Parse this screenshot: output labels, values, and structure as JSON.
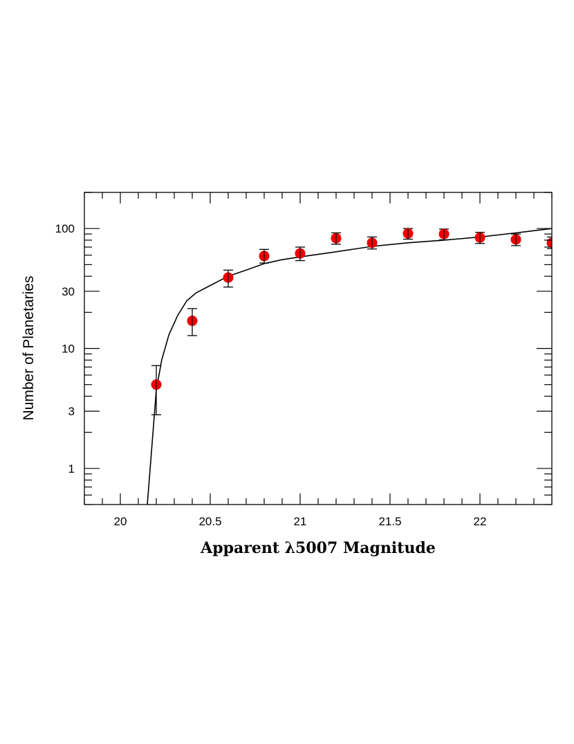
{
  "chart_data": {
    "type": "scatter",
    "xlabel": "Apparent λ5007 Magnitude",
    "ylabel": "Number of Planetaries",
    "xlim": [
      19.8,
      22.4
    ],
    "ylim": [
      0.5,
      200
    ],
    "yscale": "log",
    "grid": false,
    "point_color": "#ee0000",
    "x_ticks": [
      {
        "value": 20,
        "label": "20"
      },
      {
        "value": 20.5,
        "label": "20.5"
      },
      {
        "value": 21,
        "label": "21"
      },
      {
        "value": 21.5,
        "label": "21.5"
      },
      {
        "value": 22,
        "label": "22"
      }
    ],
    "y_ticks": [
      {
        "value": 1,
        "label": "1"
      },
      {
        "value": 3,
        "label": "3"
      },
      {
        "value": 10,
        "label": "10"
      },
      {
        "value": 30,
        "label": "30"
      },
      {
        "value": 100,
        "label": "100"
      }
    ],
    "points": [
      {
        "x": 20.2,
        "y": 5,
        "err_low": 2.8,
        "err_high": 7.2
      },
      {
        "x": 20.4,
        "y": 17,
        "err_low": 12.8,
        "err_high": 21.5
      },
      {
        "x": 20.6,
        "y": 39,
        "err_low": 32.5,
        "err_high": 45
      },
      {
        "x": 20.8,
        "y": 59,
        "err_low": 51.5,
        "err_high": 67
      },
      {
        "x": 21.0,
        "y": 62,
        "err_low": 54,
        "err_high": 70
      },
      {
        "x": 21.2,
        "y": 83,
        "err_low": 74,
        "err_high": 92
      },
      {
        "x": 21.4,
        "y": 76,
        "err_low": 67.5,
        "err_high": 85
      },
      {
        "x": 21.6,
        "y": 91,
        "err_low": 81.5,
        "err_high": 100
      },
      {
        "x": 21.8,
        "y": 90,
        "err_low": 80.5,
        "err_high": 99
      },
      {
        "x": 22.0,
        "y": 84,
        "err_low": 75,
        "err_high": 93
      },
      {
        "x": 22.2,
        "y": 81,
        "err_low": 72,
        "err_high": 90
      },
      {
        "x": 22.4,
        "y": 76,
        "err_low": 68,
        "err_high": 85
      }
    ],
    "curve": {
      "x": [
        20.15,
        20.17,
        20.2,
        20.23,
        20.27,
        20.32,
        20.37,
        20.42,
        20.5,
        20.6,
        20.7,
        20.8,
        20.9,
        21.0,
        21.2,
        21.4,
        21.6,
        21.8,
        22.0,
        22.2,
        22.4
      ],
      "y": [
        0.5,
        1.2,
        4.5,
        8,
        13,
        19,
        25,
        29,
        33.5,
        40,
        45,
        51,
        55,
        58,
        64,
        71,
        76,
        80,
        85,
        92,
        100
      ]
    }
  }
}
